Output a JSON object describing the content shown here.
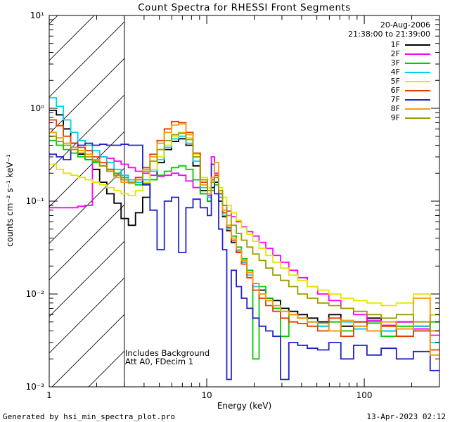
{
  "header": {
    "date": "20-Aug-2006",
    "time_range": "21:38:00 to 21:39:00"
  },
  "annotations": {
    "line1": "Includes Background",
    "line2": "Att A0, FDecim 1"
  },
  "footer": {
    "left": "Generated by hsi_min_spectra_plot.pro",
    "right": "13-Apr-2023 02:12"
  },
  "chart_data": {
    "type": "line",
    "subtype": "log-log step histogram spectra",
    "title": "Count Spectra for RHESSI Front Segments",
    "xlabel": "Energy (keV)",
    "ylabel": "counts cm⁻² s⁻¹ keV⁻¹",
    "xlim": [
      1,
      300
    ],
    "ylim": [
      0.001,
      10
    ],
    "grid": false,
    "legend_position": "top-right",
    "hatch_region_kev": [
      1,
      3
    ],
    "x_ticks": [
      {
        "v": 1,
        "label": "1"
      },
      {
        "v": 10,
        "label": "10"
      },
      {
        "v": 100,
        "label": "100"
      }
    ],
    "y_ticks": [
      {
        "v": 10,
        "label": "10¹"
      },
      {
        "v": 1,
        "label": "10⁰"
      },
      {
        "v": 0.1,
        "label": "10⁻¹"
      },
      {
        "v": 0.01,
        "label": "10⁻²"
      },
      {
        "v": 0.001,
        "label": "10⁻³"
      }
    ],
    "x_bin_edges_kev": [
      1.0,
      1.11,
      1.23,
      1.37,
      1.52,
      1.69,
      1.88,
      2.09,
      2.32,
      2.58,
      2.86,
      3.18,
      3.53,
      3.92,
      4.36,
      4.84,
      5.38,
      5.97,
      6.63,
      7.37,
      8.18,
      9.09,
      10.1,
      10.7,
      11.2,
      11.9,
      12.6,
      13.4,
      14.3,
      15.4,
      16.6,
      18.0,
      19.6,
      21.5,
      23.7,
      26.3,
      29.4,
      33.2,
      37.8,
      43.5,
      50.6,
      59.6,
      71.0,
      85.5,
      104,
      128,
      160,
      205,
      262
    ],
    "x_end_kev": 300,
    "series": [
      {
        "name": "1F",
        "color": "#000000",
        "values": [
          0.95,
          0.85,
          0.6,
          0.42,
          0.32,
          0.28,
          0.22,
          0.16,
          0.12,
          0.095,
          0.065,
          0.055,
          0.075,
          0.11,
          0.17,
          0.26,
          0.36,
          0.44,
          0.47,
          0.4,
          0.24,
          0.13,
          0.1,
          0.14,
          0.16,
          0.1,
          0.068,
          0.048,
          0.036,
          0.028,
          0.022,
          0.017,
          0.013,
          0.011,
          0.009,
          0.0085,
          0.007,
          0.0065,
          0.006,
          0.0055,
          0.005,
          0.006,
          0.0045,
          0.005,
          0.0055,
          0.004,
          0.005,
          0.0045,
          0.006
        ]
      },
      {
        "name": "2F",
        "color": "#ff00ff",
        "values": [
          0.085,
          0.085,
          0.085,
          0.085,
          0.088,
          0.09,
          0.28,
          0.3,
          0.29,
          0.27,
          0.25,
          0.23,
          0.21,
          0.2,
          0.19,
          0.185,
          0.19,
          0.2,
          0.19,
          0.165,
          0.14,
          0.12,
          0.115,
          0.3,
          0.2,
          0.12,
          0.09,
          0.078,
          0.068,
          0.06,
          0.053,
          0.047,
          0.042,
          0.036,
          0.031,
          0.026,
          0.022,
          0.018,
          0.015,
          0.012,
          0.01,
          0.0085,
          0.007,
          0.006,
          0.0052,
          0.0046,
          0.005,
          0.0042,
          0.0036
        ]
      },
      {
        "name": "3F",
        "color": "#00cc00",
        "values": [
          0.45,
          0.4,
          0.36,
          0.33,
          0.3,
          0.28,
          0.26,
          0.24,
          0.22,
          0.2,
          0.18,
          0.16,
          0.15,
          0.155,
          0.17,
          0.19,
          0.21,
          0.23,
          0.24,
          0.22,
          0.17,
          0.12,
          0.1,
          0.13,
          0.15,
          0.11,
          0.075,
          0.055,
          0.042,
          0.032,
          0.024,
          0.018,
          0.002,
          0.012,
          0.009,
          0.007,
          0.0035,
          0.006,
          0.0055,
          0.005,
          0.0045,
          0.005,
          0.004,
          0.0045,
          0.005,
          0.0035,
          0.0045,
          0.004,
          0.005
        ]
      },
      {
        "name": "4F",
        "color": "#00d0f0",
        "values": [
          1.3,
          1.05,
          0.75,
          0.55,
          0.45,
          0.4,
          0.35,
          0.3,
          0.26,
          0.22,
          0.19,
          0.17,
          0.16,
          0.17,
          0.21,
          0.28,
          0.38,
          0.47,
          0.5,
          0.42,
          0.27,
          0.14,
          0.11,
          0.16,
          0.18,
          0.11,
          0.07,
          0.05,
          0.038,
          0.029,
          0.022,
          0.016,
          0.012,
          0.01,
          0.0085,
          0.0075,
          0.0065,
          0.006,
          0.0055,
          0.005,
          0.0045,
          0.004,
          0.005,
          0.0042,
          0.0048,
          0.004,
          0.0035,
          0.0045,
          0.003
        ]
      },
      {
        "name": "5F",
        "color": "#e6e600",
        "values": [
          0.25,
          0.22,
          0.2,
          0.19,
          0.18,
          0.17,
          0.16,
          0.15,
          0.14,
          0.13,
          0.12,
          0.115,
          0.13,
          0.16,
          0.22,
          0.3,
          0.4,
          0.5,
          0.55,
          0.48,
          0.32,
          0.18,
          0.14,
          0.17,
          0.19,
          0.14,
          0.11,
          0.09,
          0.075,
          0.062,
          0.052,
          0.044,
          0.037,
          0.031,
          0.026,
          0.022,
          0.019,
          0.016,
          0.014,
          0.012,
          0.011,
          0.01,
          0.009,
          0.0085,
          0.008,
          0.0075,
          0.008,
          0.01,
          0.006
        ]
      },
      {
        "name": "6F",
        "color": "#e83c00",
        "values": [
          0.75,
          0.65,
          0.5,
          0.42,
          0.38,
          0.35,
          0.3,
          0.26,
          0.22,
          0.19,
          0.17,
          0.16,
          0.18,
          0.23,
          0.32,
          0.45,
          0.6,
          0.72,
          0.7,
          0.55,
          0.33,
          0.16,
          0.12,
          0.17,
          0.19,
          0.12,
          0.075,
          0.052,
          0.038,
          0.028,
          0.021,
          0.015,
          0.011,
          0.009,
          0.0075,
          0.0065,
          0.0055,
          0.005,
          0.0048,
          0.0045,
          0.004,
          0.0055,
          0.0035,
          0.005,
          0.004,
          0.0045,
          0.0035,
          0.004,
          0.0025
        ]
      },
      {
        "name": "7F",
        "color": "#2222cc",
        "values": [
          0.32,
          0.3,
          0.28,
          0.38,
          0.4,
          0.42,
          0.4,
          0.41,
          0.4,
          0.4,
          0.41,
          0.4,
          0.4,
          0.15,
          0.08,
          0.03,
          0.1,
          0.11,
          0.028,
          0.085,
          0.105,
          0.085,
          0.07,
          0.25,
          0.12,
          0.05,
          0.03,
          0.0012,
          0.018,
          0.012,
          0.009,
          0.007,
          0.0055,
          0.0045,
          0.004,
          0.0035,
          0.0012,
          0.003,
          0.0028,
          0.0026,
          0.0025,
          0.003,
          0.002,
          0.0028,
          0.0022,
          0.0026,
          0.002,
          0.0024,
          0.0015
        ]
      },
      {
        "name": "8F",
        "color": "#ff9900",
        "values": [
          0.55,
          0.48,
          0.42,
          0.38,
          0.35,
          0.32,
          0.28,
          0.24,
          0.21,
          0.18,
          0.16,
          0.155,
          0.17,
          0.22,
          0.3,
          0.42,
          0.55,
          0.66,
          0.68,
          0.52,
          0.3,
          0.15,
          0.12,
          0.18,
          0.26,
          0.13,
          0.08,
          0.055,
          0.04,
          0.03,
          0.023,
          0.017,
          0.013,
          0.01,
          0.0085,
          0.0075,
          0.0065,
          0.006,
          0.0055,
          0.005,
          0.0048,
          0.004,
          0.0052,
          0.0045,
          0.004,
          0.005,
          0.0042,
          0.009,
          0.0022
        ]
      },
      {
        "name": "9F",
        "color": "#9c9c00",
        "values": [
          0.5,
          0.44,
          0.4,
          0.36,
          0.33,
          0.3,
          0.27,
          0.24,
          0.21,
          0.19,
          0.17,
          0.16,
          0.17,
          0.21,
          0.27,
          0.36,
          0.45,
          0.52,
          0.54,
          0.46,
          0.3,
          0.17,
          0.13,
          0.16,
          0.18,
          0.13,
          0.09,
          0.07,
          0.055,
          0.045,
          0.038,
          0.032,
          0.027,
          0.023,
          0.019,
          0.016,
          0.014,
          0.012,
          0.01,
          0.009,
          0.008,
          0.0075,
          0.007,
          0.0065,
          0.006,
          0.0055,
          0.006,
          0.005,
          0.004
        ]
      }
    ]
  }
}
